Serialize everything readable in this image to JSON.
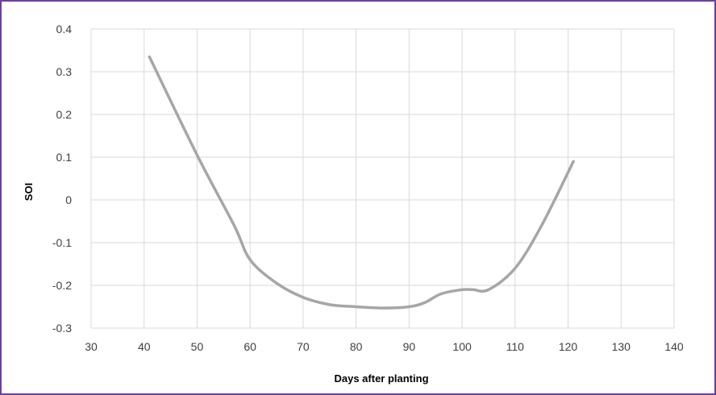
{
  "chart_data": {
    "type": "line",
    "title": "",
    "xlabel": "Days after planting",
    "ylabel": "SOI",
    "xlim": [
      30,
      140
    ],
    "ylim": [
      -0.3,
      0.4
    ],
    "x_ticks": [
      30,
      40,
      50,
      60,
      70,
      80,
      90,
      100,
      110,
      120,
      130,
      140
    ],
    "y_ticks": [
      0.4,
      0.3,
      0.2,
      0.1,
      0,
      -0.1,
      -0.2,
      -0.3
    ],
    "x_tick_labels": [
      "30",
      "40",
      "50",
      "60",
      "70",
      "80",
      "90",
      "100",
      "110",
      "120",
      "130",
      "140"
    ],
    "y_tick_labels": [
      "0.4",
      "0.3",
      "0.2",
      "0.1",
      "0",
      "-0.1",
      "-0.2",
      "-0.3"
    ],
    "grid": true,
    "legend": "none",
    "series": [
      {
        "color": "#a6a6a6",
        "smooth": true,
        "x": [
          41,
          50,
          57,
          60,
          65,
          70,
          75,
          80,
          85,
          90,
          93,
          96,
          100,
          102,
          105,
          110,
          115,
          121
        ],
        "y": [
          0.335,
          0.105,
          -0.06,
          -0.14,
          -0.195,
          -0.228,
          -0.245,
          -0.25,
          -0.253,
          -0.25,
          -0.24,
          -0.22,
          -0.21,
          -0.21,
          -0.21,
          -0.16,
          -0.06,
          0.09
        ]
      }
    ]
  },
  "colors": {
    "frame_border": "#6b3fa0",
    "gridline": "#d9d9d9",
    "line": "#a6a6a6"
  }
}
